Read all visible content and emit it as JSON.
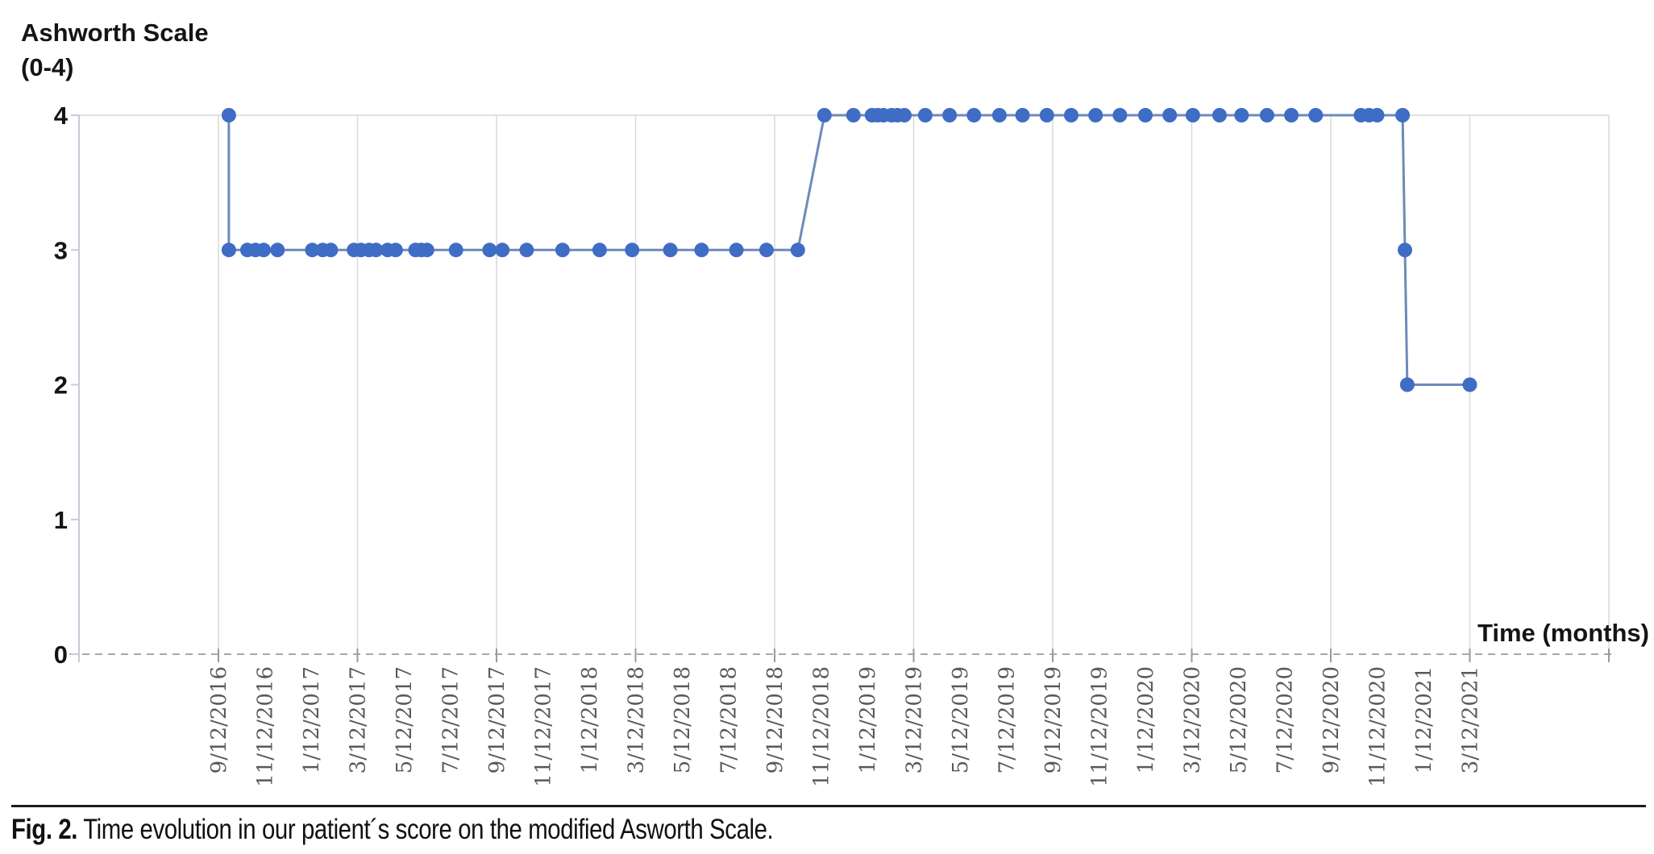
{
  "figure": {
    "y_axis_title_line1": "Ashworth Scale",
    "y_axis_title_line2": "(0-4)",
    "x_axis_title": "Time (months)",
    "caption_label": "Fig. 2.",
    "caption_text": " Time evolution in our patient´s score on the modified Asworth Scale."
  },
  "chart_data": {
    "type": "line",
    "title": "Ashworth Scale (0-4)",
    "xlabel": "Time (months)",
    "ylabel": "Ashworth Scale (0-4)",
    "ylim": [
      0,
      4
    ],
    "y_ticks": [
      0,
      1,
      2,
      3,
      4
    ],
    "x_tick_step_months": 2,
    "gridline_step_months": 6,
    "grid_months": [
      0,
      6,
      12,
      18,
      24,
      30,
      36,
      42,
      48,
      54,
      60
    ],
    "x_tick_labels": [
      "9/12/2016",
      "11/12/2016",
      "1/12/2017",
      "3/12/2017",
      "5/12/2017",
      "7/12/2017",
      "9/12/2017",
      "11/12/2017",
      "1/12/2018",
      "3/12/2018",
      "5/12/2018",
      "7/12/2018",
      "9/12/2018",
      "11/12/2018",
      "1/12/2019",
      "3/12/2019",
      "5/12/2019",
      "7/12/2019",
      "9/12/2019",
      "11/12/2019",
      "1/12/2020",
      "3/12/2020",
      "5/12/2020",
      "7/12/2020",
      "9/12/2020",
      "11/12/2020",
      "1/12/2021",
      "3/12/2021"
    ],
    "legend": "none",
    "grid": "vertical-only",
    "series": [
      {
        "name": "Modified Ashworth score",
        "x_unit": "months since 9/12/2016",
        "points": [
          [
            0.45,
            4
          ],
          [
            0.45,
            3
          ],
          [
            1.25,
            3
          ],
          [
            1.6,
            3
          ],
          [
            1.95,
            3
          ],
          [
            2.55,
            3
          ],
          [
            4.05,
            3
          ],
          [
            4.5,
            3
          ],
          [
            4.85,
            3
          ],
          [
            5.85,
            3
          ],
          [
            6.15,
            3
          ],
          [
            6.5,
            3
          ],
          [
            6.8,
            3
          ],
          [
            7.3,
            3
          ],
          [
            7.65,
            3
          ],
          [
            8.5,
            3
          ],
          [
            8.75,
            3
          ],
          [
            9.0,
            3
          ],
          [
            10.25,
            3
          ],
          [
            11.7,
            3
          ],
          [
            12.25,
            3
          ],
          [
            13.3,
            3
          ],
          [
            14.85,
            3
          ],
          [
            16.45,
            3
          ],
          [
            17.85,
            3
          ],
          [
            19.5,
            3
          ],
          [
            20.85,
            3
          ],
          [
            22.35,
            3
          ],
          [
            23.65,
            3
          ],
          [
            25.0,
            3
          ],
          [
            26.15,
            4
          ],
          [
            27.4,
            4
          ],
          [
            28.2,
            4
          ],
          [
            28.45,
            4
          ],
          [
            28.7,
            4
          ],
          [
            29.05,
            4
          ],
          [
            29.3,
            4
          ],
          [
            29.6,
            4
          ],
          [
            30.5,
            4
          ],
          [
            31.55,
            4
          ],
          [
            32.6,
            4
          ],
          [
            33.7,
            4
          ],
          [
            34.7,
            4
          ],
          [
            35.75,
            4
          ],
          [
            36.8,
            4
          ],
          [
            37.85,
            4
          ],
          [
            38.9,
            4
          ],
          [
            40.0,
            4
          ],
          [
            41.05,
            4
          ],
          [
            42.05,
            4
          ],
          [
            43.2,
            4
          ],
          [
            44.15,
            4
          ],
          [
            45.25,
            4
          ],
          [
            46.3,
            4
          ],
          [
            47.35,
            4
          ],
          [
            49.3,
            4
          ],
          [
            49.65,
            4
          ],
          [
            50.0,
            4
          ],
          [
            51.1,
            4
          ],
          [
            51.2,
            3
          ],
          [
            51.3,
            2
          ],
          [
            54.0,
            2
          ]
        ]
      }
    ],
    "colors": {
      "marker": "#3f6cc4",
      "line": "#6e8ab8",
      "gridline": "#d9d9d9",
      "y_axis": "#c5cbd8",
      "baseline_dash": "#a8a8a8",
      "tick_mark": "#9a9a9a",
      "x_tick_label": "#595959",
      "y_tick_label": "#141414",
      "text": "#141414"
    }
  }
}
